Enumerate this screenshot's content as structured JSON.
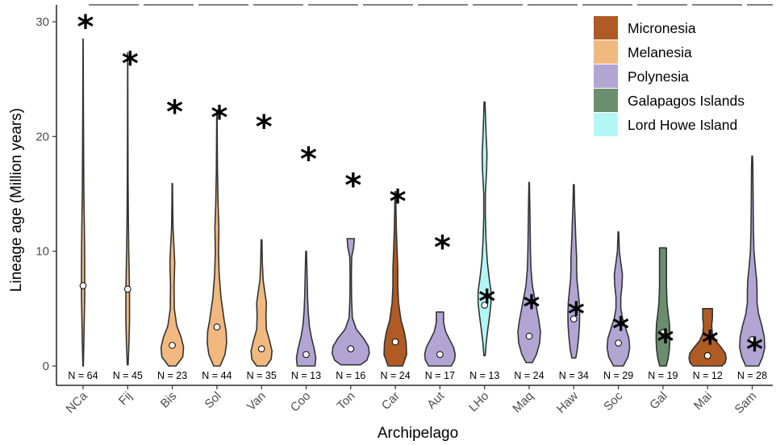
{
  "chart_data": {
    "type": "violin",
    "xlabel": "Archipelago",
    "ylabel": "Lineage age (Million years)",
    "ylim": [
      0,
      30.5
    ],
    "yticks": [
      0,
      10,
      20,
      30
    ],
    "legend_position": "top-right",
    "star_symbol": "*",
    "legend": [
      {
        "name": "Micronesia",
        "color": "#b05a24"
      },
      {
        "name": "Melanesia",
        "color": "#f1b97f"
      },
      {
        "name": "Polynesia",
        "color": "#b2a5d4"
      },
      {
        "name": "Galapagos Islands",
        "color": "#6b8e6f"
      },
      {
        "name": "Lord Howe Island",
        "color": "#b3f7f5"
      }
    ],
    "categories": [
      "NCa",
      "Fij",
      "Bis",
      "Sol",
      "Van",
      "Coo",
      "Ton",
      "Car",
      "Aut",
      "LHo",
      "Maq",
      "Haw",
      "Soc",
      "Gal",
      "Mai",
      "Sam"
    ],
    "groups": [
      {
        "label": "NCa",
        "region": "Melanesia",
        "color": "#f1b97f",
        "n_label": "N = 64",
        "median": 7.0,
        "star": 30.2,
        "min": 0.0,
        "max": 28.5,
        "profile": [
          [
            0,
            0.3
          ],
          [
            3,
            1.2
          ],
          [
            6,
            2.0
          ],
          [
            9,
            2.0
          ],
          [
            12,
            1.6
          ],
          [
            15,
            1.0
          ],
          [
            18,
            0.7
          ],
          [
            21,
            0.5
          ],
          [
            24,
            0.3
          ],
          [
            28.5,
            0.1
          ]
        ]
      },
      {
        "label": "Fij",
        "region": "Melanesia",
        "color": "#f1b97f",
        "n_label": "N = 45",
        "median": 6.7,
        "star": 27.0,
        "min": 0.1,
        "max": 27.3,
        "profile": [
          [
            0.1,
            0.5
          ],
          [
            2,
            1.6
          ],
          [
            4,
            2.3
          ],
          [
            6,
            2.3
          ],
          [
            8,
            1.9
          ],
          [
            10,
            1.3
          ],
          [
            13,
            0.8
          ],
          [
            16,
            0.5
          ],
          [
            20,
            0.3
          ],
          [
            27.3,
            0.1
          ]
        ]
      },
      {
        "label": "Bis",
        "region": "Melanesia",
        "color": "#f1b97f",
        "n_label": "N = 23",
        "median": 1.8,
        "star": 22.8,
        "min": 0.0,
        "max": 15.9,
        "profile": [
          [
            0,
            4.5
          ],
          [
            0.8,
            13
          ],
          [
            1.6,
            14
          ],
          [
            2.5,
            11
          ],
          [
            3.5,
            5.5
          ],
          [
            5,
            2.5
          ],
          [
            7,
            2.2
          ],
          [
            9,
            3
          ],
          [
            10.5,
            2
          ],
          [
            12,
            0.9
          ],
          [
            14,
            0.5
          ],
          [
            15.9,
            0.3
          ]
        ]
      },
      {
        "label": "Sol",
        "region": "Melanesia",
        "color": "#f1b97f",
        "n_label": "N = 44",
        "median": 3.4,
        "star": 22.3,
        "min": 0.0,
        "max": 22.2,
        "profile": [
          [
            0,
            4
          ],
          [
            1,
            10
          ],
          [
            2,
            12
          ],
          [
            3,
            11.5
          ],
          [
            4,
            9
          ],
          [
            6,
            5
          ],
          [
            8,
            2.8
          ],
          [
            10,
            2
          ],
          [
            12,
            2.5
          ],
          [
            14,
            1.5
          ],
          [
            17,
            0.7
          ],
          [
            20,
            0.4
          ],
          [
            22.2,
            0.2
          ]
        ]
      },
      {
        "label": "Van",
        "region": "Melanesia",
        "color": "#f1b97f",
        "n_label": "N = 35",
        "median": 1.5,
        "star": 21.5,
        "min": 0.0,
        "max": 11.0,
        "profile": [
          [
            0,
            6
          ],
          [
            0.6,
            12
          ],
          [
            1.3,
            13
          ],
          [
            2.2,
            10
          ],
          [
            3.2,
            6
          ],
          [
            4.3,
            5.5
          ],
          [
            5.5,
            6
          ],
          [
            6.5,
            4
          ],
          [
            7.5,
            2
          ],
          [
            9,
            1
          ],
          [
            11,
            0.5
          ]
        ]
      },
      {
        "label": "Coo",
        "region": "Polynesia",
        "color": "#b2a5d4",
        "n_label": "N = 13",
        "median": 1.0,
        "star": 18.7,
        "min": 0.0,
        "max": 10.0,
        "profile": [
          [
            0,
            11
          ],
          [
            0.7,
            12
          ],
          [
            1.5,
            10
          ],
          [
            2.5,
            6.5
          ],
          [
            3.5,
            4
          ],
          [
            4.8,
            2.5
          ],
          [
            6,
            1.8
          ],
          [
            7.5,
            1.3
          ],
          [
            9,
            0.8
          ],
          [
            10,
            0.4
          ]
        ]
      },
      {
        "label": "Ton",
        "region": "Polynesia",
        "color": "#b2a5d4",
        "n_label": "N = 16",
        "median": 1.5,
        "star": 16.4,
        "min": 0.1,
        "max": 11.1,
        "profile": [
          [
            0.1,
            12
          ],
          [
            0.5,
            20
          ],
          [
            1.1,
            23
          ],
          [
            1.7,
            22
          ],
          [
            2.4,
            16
          ],
          [
            3.2,
            7
          ],
          [
            4.2,
            2
          ],
          [
            6,
            1
          ],
          [
            8,
            0.8
          ],
          [
            9.5,
            1.2
          ],
          [
            10.3,
            3.5
          ],
          [
            11.1,
            4.5
          ]
        ]
      },
      {
        "label": "Car",
        "region": "Micronesia",
        "color": "#b05a24",
        "n_label": "N = 24",
        "median": 2.1,
        "star": 15.0,
        "min": 0.0,
        "max": 15.2,
        "profile": [
          [
            0,
            9
          ],
          [
            1,
            14
          ],
          [
            2,
            13.5
          ],
          [
            3,
            11
          ],
          [
            4,
            7
          ],
          [
            5.5,
            4
          ],
          [
            7,
            3
          ],
          [
            8.5,
            3
          ],
          [
            10,
            2.2
          ],
          [
            12,
            1.2
          ],
          [
            14,
            0.7
          ],
          [
            15.2,
            0.4
          ]
        ]
      },
      {
        "label": "Aut",
        "region": "Polynesia",
        "color": "#b2a5d4",
        "n_label": "N = 17",
        "median": 1.0,
        "star": 11.0,
        "min": 0.0,
        "max": 4.7,
        "profile": [
          [
            0,
            14
          ],
          [
            0.5,
            18
          ],
          [
            1,
            19
          ],
          [
            1.6,
            17
          ],
          [
            2.3,
            12
          ],
          [
            3,
            7
          ],
          [
            3.8,
            4.5
          ],
          [
            4.7,
            4.5
          ]
        ]
      },
      {
        "label": "LHo",
        "region": "Lord Howe Island",
        "color": "#b3f7f5",
        "n_label": "N = 13",
        "median": 5.3,
        "star": 6.3,
        "min": 0.9,
        "max": 23.0,
        "profile": [
          [
            0.9,
            0.8
          ],
          [
            2,
            2
          ],
          [
            3.2,
            4
          ],
          [
            4.5,
            6.5
          ],
          [
            5.5,
            8
          ],
          [
            6.5,
            8
          ],
          [
            7.5,
            6
          ],
          [
            9,
            3.5
          ],
          [
            11,
            1.8
          ],
          [
            13,
            1
          ],
          [
            15,
            1
          ],
          [
            17,
            2.5
          ],
          [
            18.5,
            3
          ],
          [
            20,
            2
          ],
          [
            22,
            1
          ],
          [
            23,
            0.6
          ]
        ]
      },
      {
        "label": "Maq",
        "region": "Polynesia",
        "color": "#b2a5d4",
        "n_label": "N = 24",
        "median": 2.6,
        "star": 5.8,
        "min": 0.3,
        "max": 16.0,
        "profile": [
          [
            0.3,
            4
          ],
          [
            1,
            9
          ],
          [
            2,
            13
          ],
          [
            3,
            14
          ],
          [
            4,
            12
          ],
          [
            5.5,
            8
          ],
          [
            7,
            4
          ],
          [
            8.5,
            2.2
          ],
          [
            10,
            1.6
          ],
          [
            12,
            1.2
          ],
          [
            14,
            0.8
          ],
          [
            16,
            0.3
          ]
        ]
      },
      {
        "label": "Haw",
        "region": "Polynesia",
        "color": "#b2a5d4",
        "n_label": "N = 34",
        "median": 4.1,
        "star": 5.2,
        "min": 0.7,
        "max": 15.8,
        "profile": [
          [
            0.7,
            2.5
          ],
          [
            1.5,
            4.5
          ],
          [
            2.5,
            6
          ],
          [
            3.5,
            7
          ],
          [
            4.5,
            7.3
          ],
          [
            5.5,
            6.8
          ],
          [
            6.5,
            5.5
          ],
          [
            7.5,
            4
          ],
          [
            8.5,
            3.5
          ],
          [
            9.5,
            3.5
          ],
          [
            11,
            2.5
          ],
          [
            12.5,
            1.8
          ],
          [
            14,
            1
          ],
          [
            15.8,
            0.5
          ]
        ]
      },
      {
        "label": "Soc",
        "region": "Polynesia",
        "color": "#b2a5d4",
        "n_label": "N = 29",
        "median": 2.0,
        "star": 3.9,
        "min": 0.0,
        "max": 11.7,
        "profile": [
          [
            0,
            6
          ],
          [
            0.8,
            12
          ],
          [
            1.6,
            14
          ],
          [
            2.4,
            13
          ],
          [
            3.3,
            9
          ],
          [
            4.2,
            5
          ],
          [
            5,
            3
          ],
          [
            6,
            3
          ],
          [
            7,
            4.5
          ],
          [
            8,
            5
          ],
          [
            9,
            3
          ],
          [
            10,
            1.2
          ],
          [
            11.7,
            0.4
          ]
        ]
      },
      {
        "label": "Gal",
        "region": "Galapagos Islands",
        "color": "#6b8e6f",
        "n_label": "N = 19",
        "median": 2.9,
        "star": 2.8,
        "min": 0.0,
        "max": 10.3,
        "profile": [
          [
            0,
            4
          ],
          [
            0.7,
            6.5
          ],
          [
            1.5,
            8
          ],
          [
            2.3,
            8.5
          ],
          [
            3,
            8.4
          ],
          [
            3.7,
            8
          ],
          [
            4.5,
            6.5
          ],
          [
            5.5,
            5
          ],
          [
            7,
            4.3
          ],
          [
            8.5,
            4.3
          ],
          [
            10.3,
            4.3
          ]
        ]
      },
      {
        "label": "Mai",
        "region": "Micronesia",
        "color": "#b05a24",
        "n_label": "N = 12",
        "median": 0.9,
        "star": 2.7,
        "min": 0.0,
        "max": 5.0,
        "profile": [
          [
            0,
            18
          ],
          [
            0.3,
            22
          ],
          [
            0.7,
            23
          ],
          [
            1.1,
            22
          ],
          [
            1.6,
            17
          ],
          [
            2.2,
            10
          ],
          [
            2.8,
            6
          ],
          [
            3.5,
            5
          ],
          [
            4.2,
            6
          ],
          [
            5,
            6
          ]
        ]
      },
      {
        "label": "Sam",
        "region": "Polynesia",
        "color": "#b2a5d4",
        "n_label": "N = 28",
        "median": 2.3,
        "star": 2.1,
        "min": 0.0,
        "max": 18.3,
        "profile": [
          [
            0,
            8
          ],
          [
            0.8,
            13
          ],
          [
            1.6,
            15.5
          ],
          [
            2.5,
            15
          ],
          [
            3.5,
            12
          ],
          [
            4.5,
            8
          ],
          [
            5.5,
            6
          ],
          [
            6.5,
            6
          ],
          [
            7.5,
            5.5
          ],
          [
            8.5,
            4
          ],
          [
            10,
            2.2
          ],
          [
            12,
            1.5
          ],
          [
            14,
            1.2
          ],
          [
            16,
            1
          ],
          [
            17.5,
            0.8
          ],
          [
            18.3,
            0.4
          ]
        ]
      }
    ]
  }
}
